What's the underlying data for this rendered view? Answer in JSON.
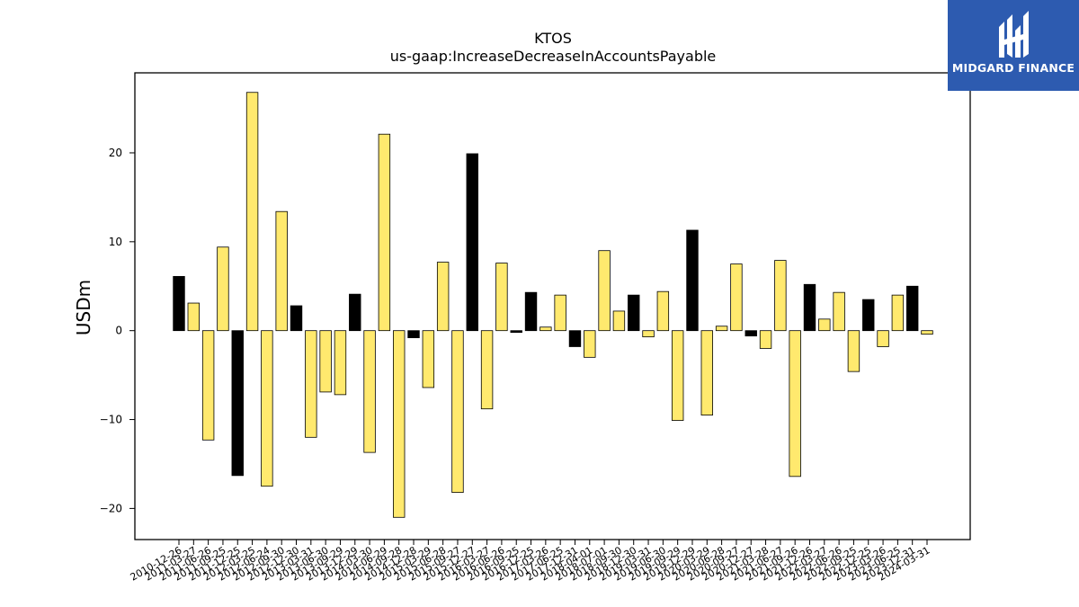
{
  "logo": {
    "text": "MIDGARD FINANCE"
  },
  "chart_data": {
    "type": "bar",
    "title": "KTOS",
    "subtitle": "us-gaap:IncreaseDecreaseInAccountsPayable",
    "ylabel": "USDm",
    "xlabel": "",
    "ylim": [
      -23.5,
      29
    ],
    "yticks": [
      -20,
      -10,
      0,
      10,
      20
    ],
    "ytick_labels": [
      "−20",
      "−10",
      "0",
      "10",
      "20"
    ],
    "grid": false,
    "legend": "none",
    "colors": {
      "highlight": "#000000",
      "default": "#ffe96e",
      "edge": "#000000"
    },
    "categories": [
      "2010-12-26",
      "2011-03-27",
      "2011-06-26",
      "2011-09-25",
      "2011-12-25",
      "2012-03-25",
      "2012-06-24",
      "2012-09-30",
      "2012-12-30",
      "2013-03-31",
      "2013-06-30",
      "2013-09-29",
      "2013-12-29",
      "2014-03-30",
      "2014-06-29",
      "2014-09-28",
      "2014-12-28",
      "2015-03-29",
      "2015-06-28",
      "2015-09-27",
      "2015-12-27",
      "2016-03-27",
      "2016-06-26",
      "2016-09-25",
      "2016-12-25",
      "2017-03-26",
      "2017-06-25",
      "2017-12-31",
      "2018-04-01",
      "2018-07-01",
      "2018-09-30",
      "2018-12-30",
      "2019-03-31",
      "2019-06-30",
      "2019-09-29",
      "2019-12-29",
      "2020-03-29",
      "2020-06-28",
      "2020-09-27",
      "2020-12-27",
      "2021-03-28",
      "2021-06-27",
      "2021-09-26",
      "2021-12-26",
      "2022-03-27",
      "2022-06-26",
      "2022-09-25",
      "2022-12-25",
      "2023-03-26",
      "2023-06-25",
      "2023-12-31",
      "2024-03-31"
    ],
    "values": [
      6.1,
      3.1,
      -12.3,
      9.4,
      -16.3,
      26.8,
      -17.5,
      13.4,
      2.8,
      -12.0,
      -6.9,
      -7.2,
      4.1,
      -13.7,
      22.1,
      -21.0,
      -0.8,
      -6.4,
      7.7,
      -18.2,
      19.9,
      -8.8,
      7.6,
      -0.2,
      4.3,
      0.4,
      4.0,
      -1.8,
      -3.0,
      9.0,
      2.2,
      4.0,
      -0.7,
      4.4,
      -10.1,
      11.3,
      -9.5,
      0.5,
      7.5,
      -0.6,
      -2.0,
      7.9,
      -16.4,
      5.2,
      1.3,
      4.3,
      -4.6,
      3.5,
      -1.8,
      4.0,
      5.0,
      -0.4
    ],
    "highlighted": [
      true,
      false,
      false,
      false,
      true,
      false,
      false,
      false,
      true,
      false,
      false,
      false,
      true,
      false,
      false,
      false,
      true,
      false,
      false,
      false,
      true,
      false,
      false,
      true,
      true,
      false,
      false,
      true,
      false,
      false,
      false,
      true,
      false,
      false,
      false,
      true,
      false,
      false,
      false,
      true,
      false,
      false,
      false,
      true,
      false,
      false,
      false,
      true,
      false,
      false,
      true,
      false
    ]
  }
}
